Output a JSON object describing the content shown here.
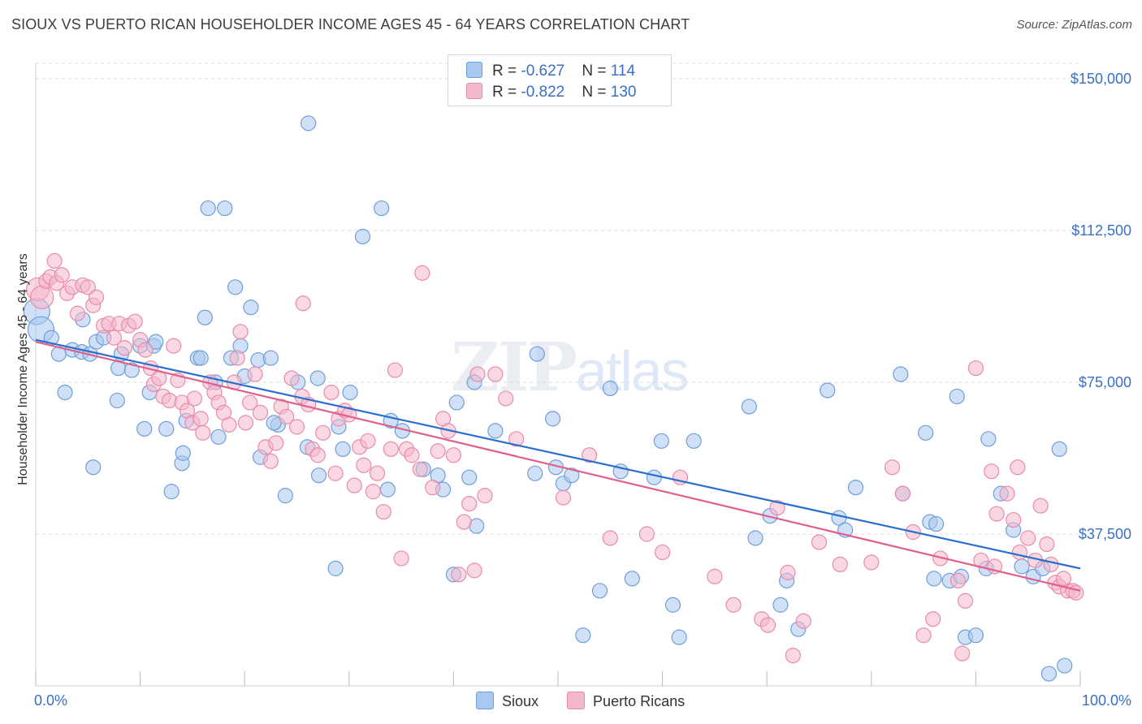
{
  "header": {
    "title": "SIOUX VS PUERTO RICAN HOUSEHOLDER INCOME AGES 45 - 64 YEARS CORRELATION CHART",
    "source": "Source: ZipAtlas.com"
  },
  "watermark": {
    "zip": "ZIP",
    "atlas": "atlas"
  },
  "legend": {
    "rows": [
      {
        "r_label": "R = ",
        "r_value": "-0.627",
        "n_label": "N = ",
        "n_value": "114",
        "color": "#a9c8f0"
      },
      {
        "r_label": "R = ",
        "r_value": "-0.822",
        "n_label": "N = ",
        "n_value": "130",
        "color": "#f4b8cc"
      }
    ]
  },
  "bottom_legend": {
    "items": [
      "Sioux",
      "Puerto Ricans"
    ]
  },
  "colors": {
    "sioux_fill": "#a9c8f0",
    "sioux_stroke": "#6f9fd8",
    "sioux_line": "#2b6fce",
    "pr_fill": "#f4b8cc",
    "pr_stroke": "#e98bab",
    "pr_line": "#e0608c",
    "tick_label": "#3a6fc4",
    "grid": "#dddddd"
  },
  "chart_data": {
    "type": "scatter",
    "title": "SIOUX VS PUERTO RICAN HOUSEHOLDER INCOME AGES 45 - 64 YEARS CORRELATION CHART",
    "xlabel": "",
    "ylabel": "Householder Income Ages 45 - 64 years",
    "xlim": [
      0,
      100
    ],
    "ylim": [
      0,
      155000
    ],
    "x_tick_labels": [
      "0.0%",
      "100.0%"
    ],
    "y_ticks": [
      37500,
      75000,
      112500,
      150000
    ],
    "y_tick_labels": [
      "$37,500",
      "$75,000",
      "$112,500",
      "$150,000"
    ],
    "grid": "horizontal dashed",
    "series": [
      {
        "name": "Sioux",
        "trend": [
          [
            0,
            85500
          ],
          [
            100,
            29000
          ]
        ],
        "points": [
          [
            0.1,
            92500
          ],
          [
            0.5,
            88000
          ],
          [
            1.5,
            86000
          ],
          [
            2.2,
            82000
          ],
          [
            2.8,
            72500
          ],
          [
            3.5,
            83000
          ],
          [
            4.4,
            82500
          ],
          [
            4.5,
            90500
          ],
          [
            5.2,
            82000
          ],
          [
            5.5,
            54000
          ],
          [
            5.8,
            85000
          ],
          [
            6.5,
            86000
          ],
          [
            7.8,
            70500
          ],
          [
            7.9,
            78500
          ],
          [
            8.2,
            82000
          ],
          [
            9.2,
            78000
          ],
          [
            10.4,
            63500
          ],
          [
            10,
            84000
          ],
          [
            10.9,
            72500
          ],
          [
            11.3,
            84000
          ],
          [
            11.5,
            85000
          ],
          [
            12.5,
            63500
          ],
          [
            13,
            48000
          ],
          [
            14,
            55000
          ],
          [
            14.1,
            57500
          ],
          [
            14.4,
            65500
          ],
          [
            15.5,
            81000
          ],
          [
            15.8,
            81000
          ],
          [
            16.2,
            91000
          ],
          [
            16.5,
            118000
          ],
          [
            18.1,
            118000
          ],
          [
            17.2,
            75000
          ],
          [
            17.5,
            61500
          ],
          [
            18.7,
            81000
          ],
          [
            19.1,
            98500
          ],
          [
            19.6,
            84000
          ],
          [
            20,
            76500
          ],
          [
            20.6,
            93500
          ],
          [
            21.3,
            80500
          ],
          [
            21.5,
            56500
          ],
          [
            22.5,
            81000
          ],
          [
            23.2,
            64500
          ],
          [
            23.9,
            47000
          ],
          [
            22.8,
            65000
          ],
          [
            25.1,
            75000
          ],
          [
            26,
            59000
          ],
          [
            26.1,
            139000
          ],
          [
            27,
            76000
          ],
          [
            27.1,
            52000
          ],
          [
            28.7,
            29000
          ],
          [
            29,
            64000
          ],
          [
            29.4,
            58500
          ],
          [
            30.1,
            72500
          ],
          [
            31.3,
            111000
          ],
          [
            33.1,
            118000
          ],
          [
            33.7,
            48500
          ],
          [
            34,
            65500
          ],
          [
            35.1,
            63000
          ],
          [
            37.1,
            53500
          ],
          [
            38.5,
            52000
          ],
          [
            39,
            48500
          ],
          [
            40,
            27500
          ],
          [
            40.3,
            70000
          ],
          [
            41.5,
            51500
          ],
          [
            42.2,
            39500
          ],
          [
            44,
            63000
          ],
          [
            47.8,
            52500
          ],
          [
            48,
            82000
          ],
          [
            49.5,
            66000
          ],
          [
            49.8,
            54000
          ],
          [
            50.5,
            50000
          ],
          [
            51.3,
            52000
          ],
          [
            52.4,
            12500
          ],
          [
            54,
            23500
          ],
          [
            55,
            73500
          ],
          [
            56,
            53000
          ],
          [
            57.1,
            26500
          ],
          [
            59.2,
            51500
          ],
          [
            59.9,
            60500
          ],
          [
            61.6,
            12000
          ],
          [
            63,
            60500
          ],
          [
            68.3,
            69000
          ],
          [
            68.9,
            36500
          ],
          [
            70.3,
            42000
          ],
          [
            71.3,
            20000
          ],
          [
            71.9,
            26000
          ],
          [
            73,
            14000
          ],
          [
            75.8,
            73000
          ],
          [
            76.9,
            41500
          ],
          [
            77.5,
            38500
          ],
          [
            78.5,
            49000
          ],
          [
            82.8,
            77000
          ],
          [
            83,
            47500
          ],
          [
            85.2,
            62500
          ],
          [
            86,
            26500
          ],
          [
            85.6,
            40500
          ],
          [
            86.2,
            40000
          ],
          [
            87.5,
            26000
          ],
          [
            88.2,
            71500
          ],
          [
            88.6,
            27000
          ],
          [
            89,
            12000
          ],
          [
            90,
            12500
          ],
          [
            91,
            29000
          ],
          [
            91.2,
            61000
          ],
          [
            92.4,
            47500
          ],
          [
            93.6,
            38500
          ],
          [
            94.4,
            29500
          ],
          [
            95.5,
            27000
          ],
          [
            96.4,
            29000
          ],
          [
            97,
            3000
          ],
          [
            98,
            58500
          ],
          [
            98.5,
            5000
          ],
          [
            61,
            20000
          ],
          [
            42,
            75000
          ]
        ]
      },
      {
        "name": "Puerto Ricans",
        "trend": [
          [
            0,
            85000
          ],
          [
            100,
            23500
          ]
        ],
        "points": [
          [
            0.2,
            98000
          ],
          [
            0.6,
            96000
          ],
          [
            1,
            100000
          ],
          [
            1.4,
            101000
          ],
          [
            1.8,
            105000
          ],
          [
            2,
            99500
          ],
          [
            2.5,
            101500
          ],
          [
            3,
            97000
          ],
          [
            3.5,
            98500
          ],
          [
            4,
            92000
          ],
          [
            4.5,
            99000
          ],
          [
            5,
            98500
          ],
          [
            5.5,
            94000
          ],
          [
            5.8,
            96000
          ],
          [
            6.5,
            89000
          ],
          [
            7,
            89500
          ],
          [
            7.5,
            86000
          ],
          [
            8,
            89500
          ],
          [
            8.5,
            83500
          ],
          [
            8.9,
            89000
          ],
          [
            9.5,
            90000
          ],
          [
            10,
            85500
          ],
          [
            10.5,
            83000
          ],
          [
            11,
            78500
          ],
          [
            11.3,
            74500
          ],
          [
            11.8,
            76000
          ],
          [
            12.2,
            71500
          ],
          [
            12.8,
            70500
          ],
          [
            13.2,
            84000
          ],
          [
            13.6,
            75500
          ],
          [
            14,
            70000
          ],
          [
            14.5,
            68000
          ],
          [
            15,
            65000
          ],
          [
            15.2,
            71000
          ],
          [
            15.8,
            66000
          ],
          [
            16,
            62500
          ],
          [
            16.7,
            75000
          ],
          [
            17.1,
            72500
          ],
          [
            17.5,
            70000
          ],
          [
            18,
            67500
          ],
          [
            18.5,
            64500
          ],
          [
            19,
            75000
          ],
          [
            19.3,
            81000
          ],
          [
            19.6,
            87500
          ],
          [
            20.1,
            65000
          ],
          [
            20.5,
            70000
          ],
          [
            21,
            77000
          ],
          [
            21.5,
            67500
          ],
          [
            22,
            59000
          ],
          [
            22.5,
            55500
          ],
          [
            23,
            60000
          ],
          [
            23.5,
            69000
          ],
          [
            24,
            66500
          ],
          [
            24.5,
            76000
          ],
          [
            25,
            64000
          ],
          [
            25.5,
            71500
          ],
          [
            26.1,
            69500
          ],
          [
            26.5,
            58500
          ],
          [
            27,
            57000
          ],
          [
            27.5,
            62500
          ],
          [
            28.3,
            72500
          ],
          [
            28.7,
            52500
          ],
          [
            29,
            66000
          ],
          [
            29.6,
            68000
          ],
          [
            30,
            67000
          ],
          [
            30.5,
            49500
          ],
          [
            31,
            59000
          ],
          [
            31.4,
            54500
          ],
          [
            31.8,
            60500
          ],
          [
            32.3,
            48000
          ],
          [
            32.7,
            52500
          ],
          [
            33.3,
            43000
          ],
          [
            34,
            58500
          ],
          [
            34.4,
            78000
          ],
          [
            35,
            31500
          ],
          [
            35.5,
            58500
          ],
          [
            36,
            57000
          ],
          [
            36.8,
            53500
          ],
          [
            37,
            102000
          ],
          [
            38,
            49000
          ],
          [
            38.5,
            58000
          ],
          [
            39,
            66000
          ],
          [
            39.5,
            63000
          ],
          [
            40,
            57000
          ],
          [
            40.5,
            27500
          ],
          [
            41,
            40500
          ],
          [
            41.5,
            45000
          ],
          [
            42,
            28500
          ],
          [
            42.3,
            77000
          ],
          [
            43,
            47000
          ],
          [
            44,
            77000
          ],
          [
            45,
            71000
          ],
          [
            46,
            61000
          ],
          [
            50.5,
            46500
          ],
          [
            53,
            57000
          ],
          [
            58.5,
            37500
          ],
          [
            61.7,
            51500
          ],
          [
            65,
            27000
          ],
          [
            66.8,
            20000
          ],
          [
            69.5,
            16500
          ],
          [
            70.1,
            15000
          ],
          [
            71,
            44000
          ],
          [
            72,
            28000
          ],
          [
            72.5,
            7500
          ],
          [
            73.5,
            16000
          ],
          [
            75,
            35500
          ],
          [
            77,
            30000
          ],
          [
            80,
            30500
          ],
          [
            82,
            54000
          ],
          [
            83,
            47500
          ],
          [
            84,
            38000
          ],
          [
            85.9,
            16500
          ],
          [
            86.6,
            31500
          ],
          [
            88.3,
            26000
          ],
          [
            89,
            21000
          ],
          [
            90,
            78500
          ],
          [
            90.5,
            31000
          ],
          [
            91.5,
            53000
          ],
          [
            92,
            42500
          ],
          [
            93,
            47500
          ],
          [
            93.6,
            41000
          ],
          [
            94.2,
            33000
          ],
          [
            95,
            36500
          ],
          [
            95.7,
            31000
          ],
          [
            96.8,
            35000
          ],
          [
            97.6,
            25500
          ],
          [
            98,
            24500
          ],
          [
            98.8,
            23500
          ],
          [
            99.3,
            23500
          ],
          [
            99.6,
            23000
          ],
          [
            94,
            54000
          ],
          [
            96.2,
            44500
          ],
          [
            97.2,
            30000
          ],
          [
            98.4,
            26500
          ],
          [
            85,
            12500
          ],
          [
            88.7,
            8000
          ],
          [
            55,
            36500
          ],
          [
            60,
            33000
          ],
          [
            25.6,
            94500
          ],
          [
            91.8,
            29500
          ]
        ]
      }
    ]
  },
  "y_axis_title": "Householder Income Ages 45 - 64 years"
}
